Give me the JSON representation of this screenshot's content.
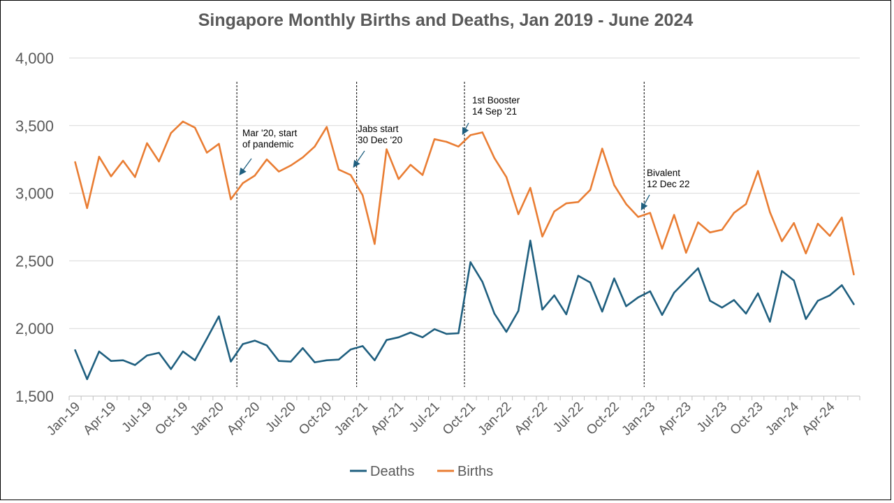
{
  "chart_data": {
    "type": "line",
    "title": "Singapore Monthly Births and Deaths, Jan 2019 - June 2024",
    "xlabel": "",
    "ylabel": "",
    "ylim": [
      1500,
      4000
    ],
    "yticks": [
      "1,500",
      "2,000",
      "2,500",
      "3,000",
      "3,500",
      "4,000"
    ],
    "ytick_values": [
      1500,
      2000,
      2500,
      3000,
      3500,
      4000
    ],
    "grid": true,
    "legend_position": "bottom",
    "x": [
      "Jan-19",
      "Feb-19",
      "Mar-19",
      "Apr-19",
      "May-19",
      "Jun-19",
      "Jul-19",
      "Aug-19",
      "Sep-19",
      "Oct-19",
      "Nov-19",
      "Dec-19",
      "Jan-20",
      "Feb-20",
      "Mar-20",
      "Apr-20",
      "May-20",
      "Jun-20",
      "Jul-20",
      "Aug-20",
      "Sep-20",
      "Oct-20",
      "Nov-20",
      "Dec-20",
      "Jan-21",
      "Feb-21",
      "Mar-21",
      "Apr-21",
      "May-21",
      "Jun-21",
      "Jul-21",
      "Aug-21",
      "Sep-21",
      "Oct-21",
      "Nov-21",
      "Dec-21",
      "Jan-22",
      "Feb-22",
      "Mar-22",
      "Apr-22",
      "May-22",
      "Jun-22",
      "Jul-22",
      "Aug-22",
      "Sep-22",
      "Oct-22",
      "Nov-22",
      "Dec-22",
      "Jan-23",
      "Feb-23",
      "Mar-23",
      "Apr-23",
      "May-23",
      "Jun-23",
      "Jul-23",
      "Aug-23",
      "Sep-23",
      "Oct-23",
      "Nov-23",
      "Dec-23",
      "Jan-24",
      "Feb-24",
      "Mar-24",
      "Apr-24",
      "May-24",
      "Jun-24"
    ],
    "xtick_labels": [
      "Jan-19",
      "Apr-19",
      "Jul-19",
      "Oct-19",
      "Jan-20",
      "Apr-20",
      "Jul-20",
      "Oct-20",
      "Jan-21",
      "Apr-21",
      "Jul-21",
      "Oct-21",
      "Jan-22",
      "Apr-22",
      "Jul-22",
      "Oct-22",
      "Jan-23",
      "Apr-23",
      "Jul-23",
      "Oct-23",
      "Jan-24",
      "Apr-24"
    ],
    "series": [
      {
        "name": "Deaths",
        "color": "#1F5F7F",
        "values": [
          1840,
          1625,
          1830,
          1760,
          1765,
          1730,
          1800,
          1820,
          1700,
          1830,
          1765,
          1925,
          2090,
          1755,
          1885,
          1910,
          1875,
          1760,
          1755,
          1855,
          1750,
          1765,
          1770,
          1845,
          1870,
          1765,
          1915,
          1935,
          1970,
          1935,
          1995,
          1960,
          1965,
          2490,
          2345,
          2110,
          1975,
          2130,
          2650,
          2140,
          2245,
          2105,
          2390,
          2340,
          2125,
          2370,
          2165,
          2230,
          2275,
          2100,
          2265,
          2355,
          2445,
          2205,
          2155,
          2210,
          2110,
          2260,
          2050,
          2425,
          2355,
          2070,
          2205,
          2245,
          2320,
          2180
        ]
      },
      {
        "name": "Births",
        "color": "#E97D33",
        "values": [
          3230,
          2890,
          3270,
          3125,
          3240,
          3120,
          3370,
          3235,
          3445,
          3530,
          3485,
          3300,
          3365,
          2955,
          3075,
          3130,
          3250,
          3160,
          3205,
          3265,
          3345,
          3490,
          3175,
          3135,
          2985,
          2625,
          3325,
          3105,
          3210,
          3135,
          3400,
          3380,
          3345,
          3430,
          3450,
          3260,
          3120,
          2845,
          3040,
          2680,
          2865,
          2925,
          2935,
          3025,
          3330,
          3060,
          2920,
          2825,
          2855,
          2590,
          2840,
          2560,
          2785,
          2710,
          2730,
          2855,
          2920,
          3165,
          2860,
          2645,
          2780,
          2555,
          2775,
          2685,
          2820,
          2400
        ]
      }
    ],
    "annotations": [
      {
        "lines": [
          "Mar '20, start",
          "of pandemic"
        ],
        "marker_month": "Feb-20"
      },
      {
        "lines": [
          "Jabs start",
          "30 Dec '20"
        ],
        "marker_month": "Dec-20"
      },
      {
        "lines": [
          "1st Booster",
          "14 Sep '21"
        ],
        "marker_month": "Sep-21"
      },
      {
        "lines": [
          "Bivalent",
          "12 Dec 22"
        ],
        "marker_month": "Dec-22"
      }
    ]
  }
}
